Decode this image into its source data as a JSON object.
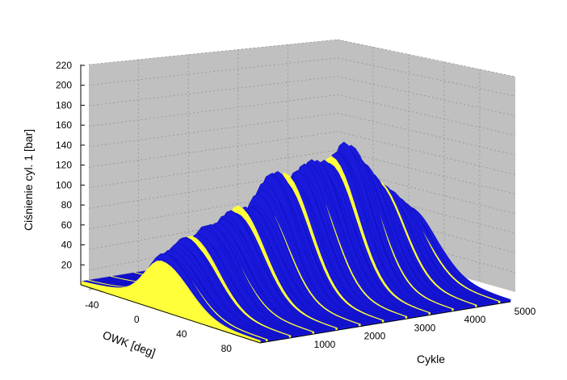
{
  "chart_data": {
    "type": "3d-waterfall",
    "xlabel": "OWK [deg]",
    "ylabel": "Cykle",
    "zlabel": "Ciśnienie cyl. 1 [bar]",
    "x_ticks": [
      "-40",
      "0",
      "40",
      "80"
    ],
    "y_ticks": [
      "1000",
      "2000",
      "3000",
      "4000",
      "5000"
    ],
    "z_ticks": [
      "20",
      "40",
      "60",
      "80",
      "100",
      "120",
      "140",
      "160",
      "180",
      "200",
      "220"
    ],
    "xlim": [
      -60,
      100
    ],
    "ylim": [
      0,
      5000
    ],
    "zlim": [
      0,
      220
    ],
    "grid": true,
    "colors": {
      "surface": "#1a1adc",
      "highlight": "#ffff3a",
      "wall": "#c0c0c0",
      "grid": "#8c8c8c"
    },
    "peak_envelope": [
      {
        "cycle": 0,
        "peak": 55
      },
      {
        "cycle": 250,
        "peak": 58
      },
      {
        "cycle": 500,
        "peak": 70
      },
      {
        "cycle": 700,
        "peak": 66
      },
      {
        "cycle": 900,
        "peak": 78
      },
      {
        "cycle": 1100,
        "peak": 75
      },
      {
        "cycle": 1300,
        "peak": 85
      },
      {
        "cycle": 1500,
        "peak": 90
      },
      {
        "cycle": 1800,
        "peak": 88
      },
      {
        "cycle": 2200,
        "peak": 120
      },
      {
        "cycle": 2600,
        "peak": 112
      },
      {
        "cycle": 3000,
        "peak": 125
      },
      {
        "cycle": 3300,
        "peak": 120
      },
      {
        "cycle": 3700,
        "peak": 138
      },
      {
        "cycle": 4200,
        "peak": 100
      },
      {
        "cycle": 5000,
        "peak": 60
      }
    ]
  }
}
